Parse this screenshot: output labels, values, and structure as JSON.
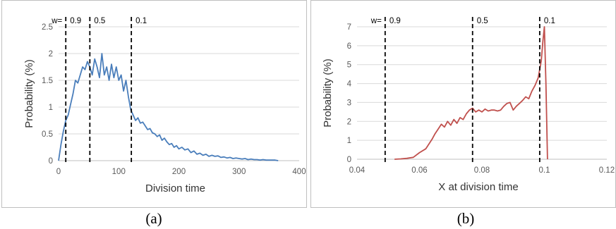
{
  "figure": {
    "captions": [
      "(a)",
      "(b)"
    ],
    "colors": {
      "series_a": "#4a7ebb",
      "series_b": "#c0504d",
      "grid": "#d9d9d9",
      "frame": "#bfbfbf",
      "vline": "#000000"
    }
  },
  "chart_data": [
    {
      "type": "line",
      "xlabel": "Division time",
      "ylabel": "Probability (%)",
      "xlim": [
        0,
        400
      ],
      "ylim": [
        0,
        2.5
      ],
      "xticks": [
        "0",
        "100",
        "200",
        "300",
        "400"
      ],
      "yticks": [
        "0",
        "0.5",
        "1",
        "1.5",
        "2",
        "2.5"
      ],
      "grid": "horizontal",
      "vlines": [
        {
          "x": 12,
          "label": "0.9"
        },
        {
          "x": 52,
          "label": "0.5"
        },
        {
          "x": 121,
          "label": "0.1"
        }
      ],
      "vline_prefix": "w=",
      "series": [
        {
          "x": [
            0,
            4,
            8,
            12,
            16,
            20,
            24,
            28,
            32,
            36,
            40,
            44,
            48,
            52,
            56,
            60,
            64,
            68,
            72,
            76,
            80,
            84,
            88,
            92,
            96,
            100,
            104,
            108,
            112,
            116,
            120,
            124,
            128,
            132,
            136,
            140,
            144,
            148,
            152,
            156,
            160,
            164,
            168,
            172,
            176,
            180,
            184,
            188,
            192,
            196,
            200,
            205,
            210,
            215,
            220,
            225,
            230,
            235,
            240,
            245,
            250,
            255,
            260,
            265,
            270,
            275,
            280,
            285,
            290,
            295,
            300,
            305,
            310,
            315,
            320,
            325,
            330,
            335,
            340,
            345,
            350,
            355,
            360,
            365
          ],
          "y": [
            0.0,
            0.3,
            0.55,
            0.75,
            0.85,
            1.05,
            1.25,
            1.5,
            1.45,
            1.6,
            1.75,
            1.7,
            1.85,
            1.75,
            1.6,
            1.9,
            1.75,
            1.55,
            2.0,
            1.6,
            1.75,
            1.5,
            1.8,
            1.55,
            1.75,
            1.5,
            1.6,
            1.3,
            1.5,
            1.2,
            0.95,
            0.85,
            0.75,
            0.8,
            0.7,
            0.72,
            0.65,
            0.58,
            0.6,
            0.52,
            0.5,
            0.45,
            0.48,
            0.38,
            0.42,
            0.35,
            0.3,
            0.32,
            0.25,
            0.28,
            0.22,
            0.25,
            0.2,
            0.22,
            0.15,
            0.18,
            0.12,
            0.14,
            0.1,
            0.12,
            0.08,
            0.1,
            0.08,
            0.09,
            0.06,
            0.07,
            0.05,
            0.06,
            0.04,
            0.05,
            0.04,
            0.03,
            0.04,
            0.02,
            0.03,
            0.02,
            0.02,
            0.01,
            0.02,
            0.01,
            0.01,
            0.01,
            0.01,
            0.0
          ]
        }
      ]
    },
    {
      "type": "line",
      "xlabel": "X at division time",
      "ylabel": "Probability (%)",
      "xlim": [
        0.04,
        0.12
      ],
      "ylim": [
        0,
        7
      ],
      "xticks": [
        "0.04",
        "0.06",
        "0.08",
        "0.1",
        "0.12"
      ],
      "yticks": [
        "0",
        "1",
        "2",
        "3",
        "4",
        "5",
        "6",
        "7"
      ],
      "grid": "horizontal",
      "vlines": [
        {
          "x": 0.049,
          "label": "0.9"
        },
        {
          "x": 0.077,
          "label": "0.5"
        },
        {
          "x": 0.0985,
          "label": "0.1"
        }
      ],
      "vline_prefix": "w=",
      "series": [
        {
          "x": [
            0.052,
            0.054,
            0.056,
            0.058,
            0.06,
            0.062,
            0.064,
            0.065,
            0.066,
            0.067,
            0.068,
            0.069,
            0.07,
            0.071,
            0.072,
            0.073,
            0.074,
            0.075,
            0.076,
            0.077,
            0.078,
            0.079,
            0.08,
            0.081,
            0.082,
            0.083,
            0.084,
            0.085,
            0.086,
            0.087,
            0.088,
            0.089,
            0.09,
            0.091,
            0.092,
            0.093,
            0.094,
            0.095,
            0.096,
            0.097,
            0.098,
            0.099,
            0.0995,
            0.1,
            0.1005,
            0.101
          ],
          "y": [
            0.0,
            0.02,
            0.05,
            0.1,
            0.35,
            0.55,
            1.05,
            1.35,
            1.6,
            1.85,
            1.7,
            2.0,
            1.8,
            2.1,
            1.9,
            2.2,
            2.1,
            2.4,
            2.6,
            2.7,
            2.5,
            2.6,
            2.5,
            2.65,
            2.55,
            2.6,
            2.6,
            2.55,
            2.6,
            2.8,
            2.95,
            3.0,
            2.6,
            2.8,
            2.95,
            3.1,
            3.3,
            3.2,
            3.6,
            3.9,
            4.3,
            5.2,
            6.2,
            7.0,
            4.0,
            0.0
          ]
        }
      ]
    }
  ]
}
